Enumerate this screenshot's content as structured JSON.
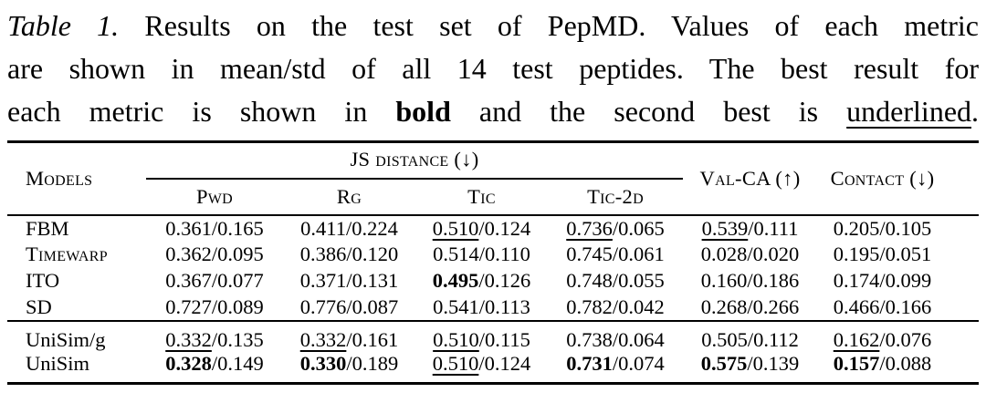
{
  "caption": {
    "lines": [
      [
        {
          "t": "Table 1.",
          "style": "italic"
        },
        {
          "t": " Results on the test set of PepMD. Values of each metric",
          "style": "normal"
        }
      ],
      [
        {
          "t": "are shown in mean/std of all 14 test peptides. The best result for",
          "style": "normal"
        }
      ],
      [
        {
          "t": "each metric is shown in ",
          "style": "normal"
        },
        {
          "t": "bold",
          "style": "bold"
        },
        {
          "t": " and the second best is ",
          "style": "normal"
        },
        {
          "t": "underlined",
          "style": "underline"
        },
        {
          "t": ".",
          "style": "normal"
        }
      ]
    ]
  },
  "table": {
    "header": {
      "models": "Models",
      "group": "JS distance (↓)",
      "subcols": [
        "Pwd",
        "Rg",
        "Tic",
        "Tic-2d"
      ],
      "val_ca": "Val-CA (↑)",
      "contact": "Contact (↓)"
    },
    "style_legend": {
      "n": "normal",
      "b": "bold (best)",
      "u": "underline (second best)"
    },
    "groups": [
      {
        "rows": [
          {
            "model": "FBM",
            "sc": false,
            "cells": [
              {
                "v": "0.361/0.165",
                "s": "n"
              },
              {
                "v": "0.411/0.224",
                "s": "n"
              },
              {
                "v": "0.510/0.124",
                "s": "u"
              },
              {
                "v": "0.736/0.065",
                "s": "u"
              },
              {
                "v": "0.539/0.111",
                "s": "u"
              },
              {
                "v": "0.205/0.105",
                "s": "n"
              }
            ]
          },
          {
            "model": "Timewarp",
            "sc": true,
            "cells": [
              {
                "v": "0.362/0.095",
                "s": "n"
              },
              {
                "v": "0.386/0.120",
                "s": "n"
              },
              {
                "v": "0.514/0.110",
                "s": "n"
              },
              {
                "v": "0.745/0.061",
                "s": "n"
              },
              {
                "v": "0.028/0.020",
                "s": "n"
              },
              {
                "v": "0.195/0.051",
                "s": "n"
              }
            ]
          },
          {
            "model": "ITO",
            "sc": false,
            "cells": [
              {
                "v": "0.367/0.077",
                "s": "n"
              },
              {
                "v": "0.371/0.131",
                "s": "n"
              },
              {
                "v": "0.495/0.126",
                "s": "b"
              },
              {
                "v": "0.748/0.055",
                "s": "n"
              },
              {
                "v": "0.160/0.186",
                "s": "n"
              },
              {
                "v": "0.174/0.099",
                "s": "n"
              }
            ]
          },
          {
            "model": "SD",
            "sc": false,
            "cells": [
              {
                "v": "0.727/0.089",
                "s": "n"
              },
              {
                "v": "0.776/0.087",
                "s": "n"
              },
              {
                "v": "0.541/0.113",
                "s": "n"
              },
              {
                "v": "0.782/0.042",
                "s": "n"
              },
              {
                "v": "0.268/0.266",
                "s": "n"
              },
              {
                "v": "0.466/0.166",
                "s": "n"
              }
            ]
          }
        ]
      },
      {
        "rows": [
          {
            "model": "UniSim/g",
            "sc": false,
            "cells": [
              {
                "v": "0.332/0.135",
                "s": "u"
              },
              {
                "v": "0.332/0.161",
                "s": "u"
              },
              {
                "v": "0.510/0.115",
                "s": "u"
              },
              {
                "v": "0.738/0.064",
                "s": "n"
              },
              {
                "v": "0.505/0.112",
                "s": "n"
              },
              {
                "v": "0.162/0.076",
                "s": "u"
              }
            ]
          },
          {
            "model": "UniSim",
            "sc": false,
            "cells": [
              {
                "v": "0.328/0.149",
                "s": "b"
              },
              {
                "v": "0.330/0.189",
                "s": "b"
              },
              {
                "v": "0.510/0.124",
                "s": "u"
              },
              {
                "v": "0.731/0.074",
                "s": "b"
              },
              {
                "v": "0.575/0.139",
                "s": "b"
              },
              {
                "v": "0.157/0.088",
                "s": "b"
              }
            ]
          }
        ]
      }
    ]
  }
}
